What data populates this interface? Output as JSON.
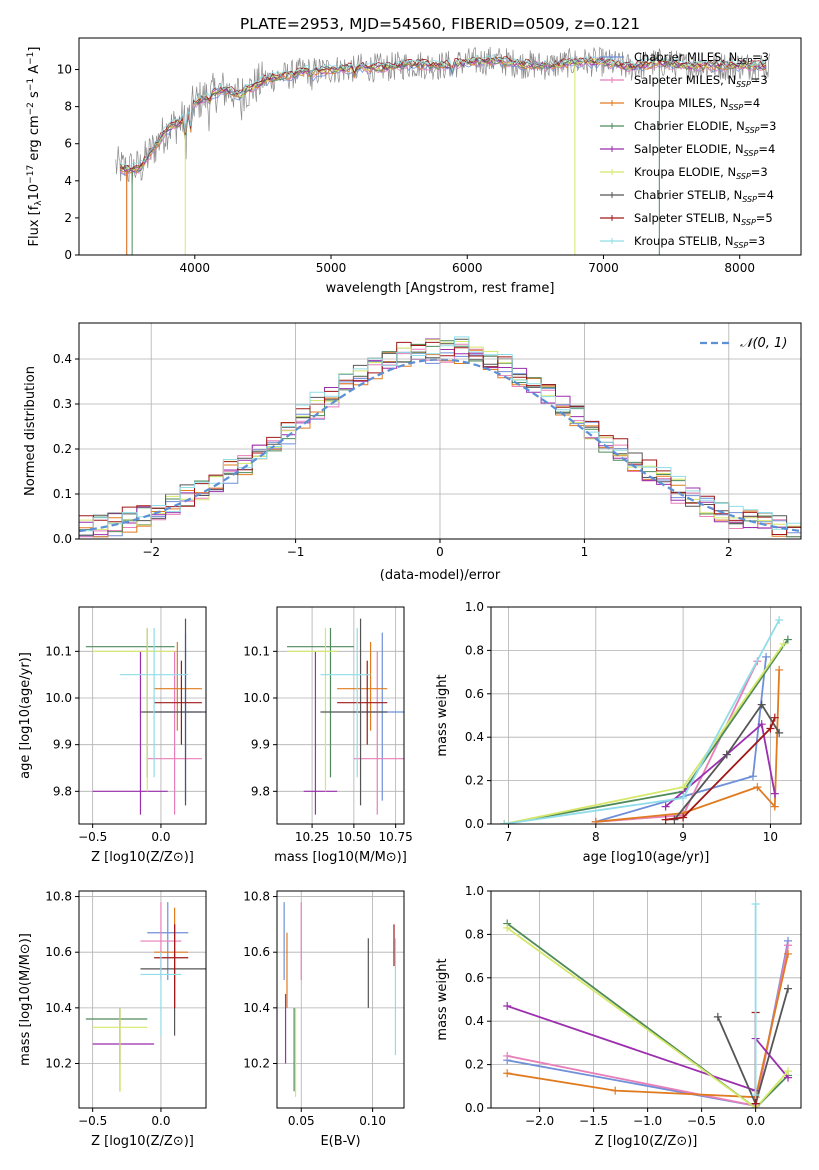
{
  "figure_title": "PLATE=2953, MJD=54560, FIBERID=0509, z=0.121",
  "colors": {
    "Chabrier MILES": "#6f8fd8",
    "Salpeter MILES": "#e87fb8",
    "Kroupa MILES": "#e07b20",
    "Chabrier ELODIE": "#4f8a5a",
    "Salpeter ELODIE": "#9b2fae",
    "Kroupa ELODIE": "#d6e86a",
    "Chabrier STELIB": "#555555",
    "Salpeter STELIB": "#a01818",
    "Kroupa STELIB": "#8fdde8",
    "data": "#8a8a8a",
    "normal": "#5b8fd6"
  },
  "panels": {
    "spectrum": {
      "xlabel": "wavelength [Angstrom, rest frame]",
      "ylabel": "Flux [f_λ10^-17 erg cm^-2 s^-1 A^-1]",
      "xticks": [
        "4000",
        "5000",
        "6000",
        "7000",
        "8000"
      ],
      "yticks": [
        "0",
        "2",
        "4",
        "6",
        "8",
        "10"
      ],
      "legend": [
        {
          "name": "Chabrier MILES",
          "nssp": "3"
        },
        {
          "name": "Salpeter MILES",
          "nssp": "3"
        },
        {
          "name": "Kroupa MILES",
          "nssp": "4"
        },
        {
          "name": "Chabrier ELODIE",
          "nssp": "3"
        },
        {
          "name": "Salpeter ELODIE",
          "nssp": "4"
        },
        {
          "name": "Kroupa ELODIE",
          "nssp": "3"
        },
        {
          "name": "Chabrier STELIB",
          "nssp": "4"
        },
        {
          "name": "Salpeter STELIB",
          "nssp": "5"
        },
        {
          "name": "Kroupa STELIB",
          "nssp": "3"
        }
      ]
    },
    "residuals": {
      "xlabel": "(data-model)/error",
      "ylabel": "Normed distribution",
      "xticks": [
        "−2",
        "−1",
        "0",
        "1",
        "2"
      ],
      "yticks": [
        "0.0",
        "0.1",
        "0.2",
        "0.3",
        "0.4"
      ],
      "legend": "𝒩(0, 1)"
    },
    "age_vs_Z": {
      "xlabel": "Z [log10(Z/Z⊙)]",
      "ylabel": "age  [log10(age/yr)]",
      "xticks": [
        "−0.5",
        "0.0"
      ],
      "yticks": [
        "9.8",
        "9.9",
        "10.0",
        "10.1"
      ]
    },
    "age_vs_mass": {
      "xlabel": "mass [log10(M/M⊙)]",
      "xticks": [
        "10.25",
        "10.50",
        "10.75"
      ],
      "yticks": [
        "9.8",
        "9.9",
        "10.0",
        "10.1"
      ]
    },
    "weight_vs_age": {
      "xlabel": "age  [log10(age/yr)]",
      "ylabel": "mass weight",
      "xticks": [
        "7",
        "8",
        "9",
        "10"
      ],
      "yticks": [
        "0.0",
        "0.2",
        "0.4",
        "0.6",
        "0.8",
        "1.0"
      ]
    },
    "mass_vs_Z": {
      "xlabel": "Z [log10(Z/Z⊙)]",
      "ylabel": "mass [log10(M/M⊙)]",
      "xticks": [
        "−0.5",
        "0.0"
      ],
      "yticks": [
        "10.2",
        "10.4",
        "10.6",
        "10.8"
      ]
    },
    "mass_vs_ebv": {
      "xlabel": "E(B-V)",
      "xticks": [
        "0.05",
        "0.10"
      ],
      "yticks": [
        "10.2",
        "10.4",
        "10.6",
        "10.8"
      ]
    },
    "weight_vs_Z": {
      "xlabel": "Z [log10(Z/Z⊙)]",
      "ylabel": "mass weight",
      "xticks": [
        "−2.0",
        "−1.5",
        "−1.0",
        "−0.5",
        "0.0"
      ],
      "yticks": [
        "0.0",
        "0.2",
        "0.4",
        "0.6",
        "0.8",
        "1.0"
      ]
    }
  },
  "chart_data": [
    {
      "type": "line",
      "title": "PLATE=2953, MJD=54560, FIBERID=0509, z=0.121",
      "xlabel": "wavelength [Angstrom, rest frame]",
      "ylabel": "Flux [f_λ10^-17 erg cm^-2 s^-1 A^-1]",
      "xlim": [
        3150,
        8450
      ],
      "ylim": [
        0,
        11.7
      ],
      "continuum": {
        "x": [
          3420,
          3500,
          3600,
          3700,
          3800,
          3900,
          4000,
          4100,
          4200,
          4300,
          4400,
          4500,
          4600,
          4700,
          4800,
          4900,
          5000,
          5200,
          5400,
          5600,
          5800,
          6000,
          6200,
          6400,
          6600,
          6800,
          7000,
          7200,
          7400,
          7600,
          7800,
          8000,
          8200
        ],
        "y": [
          4.8,
          4.6,
          4.7,
          5.8,
          6.8,
          7.2,
          8.2,
          8.6,
          8.9,
          8.8,
          8.9,
          9.4,
          9.6,
          9.7,
          9.9,
          9.9,
          10.0,
          10.1,
          10.1,
          10.3,
          10.2,
          10.4,
          10.5,
          10.3,
          10.2,
          10.4,
          10.4,
          10.1,
          10.4,
          10.2,
          10.2,
          10.2,
          10.2
        ]
      },
      "series": [
        {
          "name": "Chabrier MILES",
          "nssp": 3
        },
        {
          "name": "Salpeter MILES",
          "nssp": 3
        },
        {
          "name": "Kroupa MILES",
          "nssp": 4
        },
        {
          "name": "Chabrier ELODIE",
          "nssp": 3
        },
        {
          "name": "Salpeter ELODIE",
          "nssp": 4
        },
        {
          "name": "Kroupa ELODIE",
          "nssp": 3
        },
        {
          "name": "Chabrier STELIB",
          "nssp": 4
        },
        {
          "name": "Salpeter STELIB",
          "nssp": 5
        },
        {
          "name": "Kroupa STELIB",
          "nssp": 3
        }
      ]
    },
    {
      "type": "bar",
      "xlabel": "(data-model)/error",
      "ylabel": "Normed distribution",
      "xlim": [
        -2.5,
        2.5
      ],
      "ylim": [
        0,
        0.48
      ],
      "bin_width": 0.1,
      "grid": true,
      "legend": "𝒩(0, 1)",
      "legend_position": "top-right"
    },
    {
      "type": "scatter",
      "xlabel": "Z [log10(Z/Z⊙)]",
      "ylabel": "age  [log10(age/yr)]",
      "xlim": [
        -0.6,
        0.33
      ],
      "ylim": [
        9.73,
        10.195
      ],
      "points": [
        {
          "series": "Chabrier MILES",
          "x": 0.18,
          "y": 9.97,
          "x_range": [
            -0.05,
            0.3
          ],
          "y_range": [
            9.78,
            10.14
          ]
        },
        {
          "series": "Salpeter MILES",
          "x": 0.1,
          "y": 9.87,
          "x_range": [
            -0.1,
            0.3
          ],
          "y_range": [
            9.75,
            10.1
          ]
        },
        {
          "series": "Kroupa MILES",
          "x": 0.12,
          "y": 10.02,
          "x_range": [
            -0.05,
            0.3
          ],
          "y_range": [
            9.93,
            10.12
          ]
        },
        {
          "series": "Chabrier ELODIE",
          "x": -0.1,
          "y": 10.11,
          "x_range": [
            -0.55,
            0.1
          ],
          "y_range": [
            9.83,
            10.15
          ]
        },
        {
          "series": "Salpeter ELODIE",
          "x": -0.15,
          "y": 9.8,
          "x_range": [
            -0.5,
            0.05
          ],
          "y_range": [
            9.75,
            10.1
          ]
        },
        {
          "series": "Kroupa ELODIE",
          "x": -0.1,
          "y": 10.1,
          "x_range": [
            -0.5,
            0.1
          ],
          "y_range": [
            9.8,
            10.15
          ]
        },
        {
          "series": "Chabrier STELIB",
          "x": 0.18,
          "y": 9.97,
          "x_range": [
            -0.15,
            0.33
          ],
          "y_range": [
            9.77,
            10.17
          ]
        },
        {
          "series": "Salpeter STELIB",
          "x": 0.15,
          "y": 9.99,
          "x_range": [
            -0.05,
            0.3
          ],
          "y_range": [
            9.9,
            10.08
          ]
        },
        {
          "series": "Kroupa STELIB",
          "x": -0.05,
          "y": 10.05,
          "x_range": [
            -0.3,
            0.2
          ],
          "y_range": [
            9.83,
            10.15
          ]
        }
      ]
    },
    {
      "type": "scatter",
      "xlabel": "mass [log10(M/M⊙)]",
      "xlim": [
        10.04,
        10.8
      ],
      "ylim": [
        9.73,
        10.195
      ],
      "points": [
        {
          "series": "Chabrier MILES",
          "x": 10.67,
          "y": 9.97,
          "x_range": [
            10.5,
            10.8
          ],
          "y_range": [
            9.78,
            10.14
          ]
        },
        {
          "series": "Salpeter MILES",
          "x": 10.64,
          "y": 9.87,
          "x_range": [
            10.5,
            10.8
          ],
          "y_range": [
            9.75,
            10.1
          ]
        },
        {
          "series": "Kroupa MILES",
          "x": 10.6,
          "y": 10.02,
          "x_range": [
            10.4,
            10.7
          ],
          "y_range": [
            9.93,
            10.12
          ]
        },
        {
          "series": "Chabrier ELODIE",
          "x": 10.36,
          "y": 10.11,
          "x_range": [
            10.1,
            10.5
          ],
          "y_range": [
            9.83,
            10.15
          ]
        },
        {
          "series": "Salpeter ELODIE",
          "x": 10.27,
          "y": 9.8,
          "x_range": [
            10.2,
            10.4
          ],
          "y_range": [
            9.75,
            10.1
          ]
        },
        {
          "series": "Kroupa ELODIE",
          "x": 10.33,
          "y": 10.1,
          "x_range": [
            10.1,
            10.4
          ],
          "y_range": [
            9.8,
            10.15
          ]
        },
        {
          "series": "Chabrier STELIB",
          "x": 10.54,
          "y": 9.97,
          "x_range": [
            10.3,
            10.7
          ],
          "y_range": [
            9.77,
            10.17
          ]
        },
        {
          "series": "Salpeter STELIB",
          "x": 10.58,
          "y": 9.99,
          "x_range": [
            10.4,
            10.7
          ],
          "y_range": [
            9.9,
            10.08
          ]
        },
        {
          "series": "Kroupa STELIB",
          "x": 10.52,
          "y": 10.05,
          "x_range": [
            10.3,
            10.6
          ],
          "y_range": [
            9.83,
            10.15
          ]
        }
      ]
    },
    {
      "type": "line",
      "xlabel": "age  [log10(age/yr)]",
      "ylabel": "mass weight",
      "xlim": [
        6.8,
        10.35
      ],
      "ylim": [
        0,
        1.0
      ],
      "series": [
        {
          "name": "Chabrier MILES",
          "x": [
            8.0,
            9.8,
            9.95
          ],
          "y": [
            0.01,
            0.22,
            0.77
          ]
        },
        {
          "name": "Salpeter MILES",
          "x": [
            8.0,
            9.0,
            9.85
          ],
          "y": [
            0.01,
            0.04,
            0.75
          ]
        },
        {
          "name": "Kroupa MILES",
          "x": [
            8.0,
            9.0,
            9.85,
            10.05,
            10.1
          ],
          "y": [
            0.01,
            0.05,
            0.17,
            0.08,
            0.71
          ]
        },
        {
          "name": "Chabrier ELODIE",
          "x": [
            6.95,
            9.0,
            10.2
          ],
          "y": [
            0.0,
            0.15,
            0.85
          ]
        },
        {
          "name": "Salpeter ELODIE",
          "x": [
            8.8,
            9.5,
            9.9,
            10.05
          ],
          "y": [
            0.08,
            0.32,
            0.46,
            0.14
          ]
        },
        {
          "name": "Kroupa ELODIE",
          "x": [
            6.95,
            9.0,
            10.15
          ],
          "y": [
            0.0,
            0.17,
            0.83
          ]
        },
        {
          "name": "Chabrier STELIB",
          "x": [
            8.9,
            9.5,
            9.9,
            10.1
          ],
          "y": [
            0.02,
            0.32,
            0.55,
            0.42
          ]
        },
        {
          "name": "Salpeter STELIB",
          "x": [
            8.8,
            9.0,
            10.0,
            10.05
          ],
          "y": [
            0.02,
            0.03,
            0.44,
            0.49
          ]
        },
        {
          "name": "Kroupa STELIB",
          "x": [
            6.95,
            9.0,
            10.1
          ],
          "y": [
            0.0,
            0.12,
            0.94
          ]
        }
      ],
      "grid": true
    },
    {
      "type": "scatter",
      "xlabel": "Z [log10(Z/Z⊙)]",
      "ylabel": "mass [log10(M/M⊙)]",
      "xlim": [
        -0.6,
        0.33
      ],
      "ylim": [
        10.04,
        10.82
      ],
      "points": [
        {
          "series": "Chabrier MILES",
          "x": 0.05,
          "y": 10.67,
          "x_range": [
            -0.1,
            0.2
          ],
          "y_range": [
            10.5,
            10.78
          ]
        },
        {
          "series": "Salpeter MILES",
          "x": 0.0,
          "y": 10.64,
          "x_range": [
            -0.15,
            0.15
          ],
          "y_range": [
            10.5,
            10.78
          ]
        },
        {
          "series": "Kroupa MILES",
          "x": 0.1,
          "y": 10.6,
          "x_range": [
            -0.05,
            0.2
          ],
          "y_range": [
            10.4,
            10.76
          ]
        },
        {
          "series": "Chabrier ELODIE",
          "x": -0.3,
          "y": 10.36,
          "x_range": [
            -0.55,
            -0.1
          ],
          "y_range": [
            10.1,
            10.4
          ]
        },
        {
          "series": "Salpeter ELODIE",
          "x": -0.3,
          "y": 10.27,
          "x_range": [
            -0.5,
            -0.05
          ],
          "y_range": [
            10.2,
            10.4
          ]
        },
        {
          "series": "Kroupa ELODIE",
          "x": -0.3,
          "y": 10.33,
          "x_range": [
            -0.5,
            -0.1
          ],
          "y_range": [
            10.1,
            10.4
          ]
        },
        {
          "series": "Chabrier STELIB",
          "x": 0.1,
          "y": 10.54,
          "x_range": [
            -0.15,
            0.33
          ],
          "y_range": [
            10.3,
            10.7
          ]
        },
        {
          "series": "Salpeter STELIB",
          "x": 0.1,
          "y": 10.58,
          "x_range": [
            -0.05,
            0.2
          ],
          "y_range": [
            10.4,
            10.7
          ]
        },
        {
          "series": "Kroupa STELIB",
          "x": 0.0,
          "y": 10.52,
          "x_range": [
            -0.15,
            0.15
          ],
          "y_range": [
            10.3,
            10.6
          ]
        }
      ]
    },
    {
      "type": "scatter",
      "xlabel": "E(B-V)",
      "xlim": [
        0.033,
        0.122
      ],
      "ylim": [
        10.04,
        10.82
      ],
      "points": [
        {
          "series": "Chabrier MILES",
          "x": 0.038,
          "y": 10.67,
          "y_range": [
            10.5,
            10.78
          ]
        },
        {
          "series": "Salpeter MILES",
          "x": 0.05,
          "y": 10.64,
          "y_range": [
            10.5,
            10.78
          ]
        },
        {
          "series": "Kroupa MILES",
          "x": 0.04,
          "y": 10.6,
          "y_range": [
            10.4,
            10.67
          ]
        },
        {
          "series": "Chabrier ELODIE",
          "x": 0.045,
          "y": 10.36,
          "y_range": [
            10.1,
            10.4
          ]
        },
        {
          "series": "Salpeter ELODIE",
          "x": 0.039,
          "y": 10.27,
          "y_range": [
            10.2,
            10.45
          ]
        },
        {
          "series": "Kroupa ELODIE",
          "x": 0.046,
          "y": 10.33,
          "y_range": [
            10.08,
            10.4
          ]
        },
        {
          "series": "Chabrier STELIB",
          "x": 0.097,
          "y": 10.54,
          "y_range": [
            10.4,
            10.65
          ]
        },
        {
          "series": "Salpeter STELIB",
          "x": 0.115,
          "y": 10.58,
          "y_range": [
            10.55,
            10.7
          ]
        },
        {
          "series": "Kroupa STELIB",
          "x": 0.116,
          "y": 10.52,
          "y_range": [
            10.23,
            10.65
          ]
        }
      ]
    },
    {
      "type": "line",
      "xlabel": "Z [log10(Z/Z⊙)]",
      "ylabel": "mass weight",
      "xlim": [
        -2.45,
        0.42
      ],
      "ylim": [
        0,
        1.0
      ],
      "series": [
        {
          "name": "Chabrier MILES",
          "x": [
            -2.3,
            0.0,
            0.3
          ],
          "y": [
            0.22,
            0.01,
            0.77
          ]
        },
        {
          "name": "Salpeter MILES",
          "x": [
            -2.3,
            0.0,
            0.3
          ],
          "y": [
            0.24,
            0.01,
            0.75
          ]
        },
        {
          "name": "Kroupa MILES",
          "x": [
            -2.3,
            -1.3,
            0.0,
            0.3
          ],
          "y": [
            0.16,
            0.08,
            0.05,
            0.71
          ]
        },
        {
          "name": "Chabrier ELODIE",
          "x": [
            -2.3,
            0.0,
            0.3
          ],
          "y": [
            0.85,
            0.0,
            0.15
          ]
        },
        {
          "name": "Salpeter ELODIE",
          "x": [
            -2.3,
            0.0,
            0.0,
            0.3
          ],
          "y": [
            0.47,
            0.08,
            0.32,
            0.14
          ]
        },
        {
          "name": "Kroupa ELODIE",
          "x": [
            -2.3,
            0.0,
            0.3
          ],
          "y": [
            0.83,
            0.0,
            0.17
          ]
        },
        {
          "name": "Chabrier STELIB",
          "x": [
            -0.35,
            0.0,
            0.3
          ],
          "y": [
            0.42,
            0.02,
            0.55
          ]
        },
        {
          "name": "Salpeter STELIB",
          "x": [
            0.0,
            0.0
          ],
          "y": [
            0.02,
            0.44
          ]
        },
        {
          "name": "Kroupa STELIB",
          "x": [
            0.0,
            0.0
          ],
          "y": [
            0.06,
            0.94
          ]
        }
      ],
      "grid": true
    }
  ]
}
